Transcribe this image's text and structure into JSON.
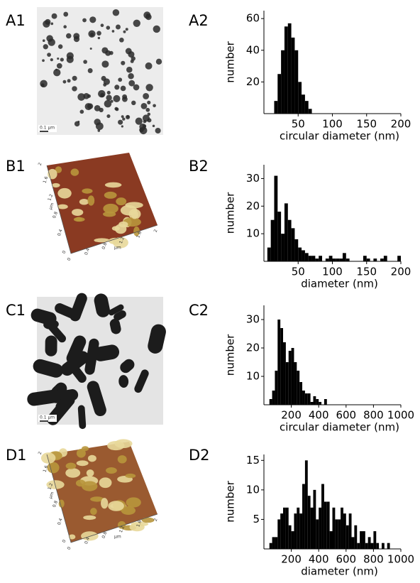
{
  "image_panels": [
    {
      "label": "A1",
      "scale_bar": "0.1 µm"
    },
    {
      "label": "B1",
      "axis_ticks": [
        "0",
        "0.4",
        "0.8",
        "1.2",
        "1.6",
        "2"
      ],
      "axis_unit": "µm"
    },
    {
      "label": "C1",
      "scale_bar": "0.1 µm"
    },
    {
      "label": "D1",
      "axis_ticks": [
        "0",
        "0.4",
        "0.8",
        "1.2",
        "1.6",
        "2"
      ],
      "axis_unit": "µm"
    }
  ],
  "chart_data": [
    {
      "type": "histogram",
      "panel_label": "A2",
      "xlabel": "circular diameter (nm)",
      "ylabel": "number",
      "color": "#000000",
      "bins": [
        15,
        20,
        25,
        30,
        35,
        40,
        45,
        50,
        55,
        60,
        65,
        70
      ],
      "counts": [
        8,
        25,
        40,
        55,
        57,
        48,
        40,
        20,
        12,
        8,
        3
      ],
      "xlim": [
        0,
        200
      ],
      "ylim": [
        0,
        65
      ],
      "xticks": [
        50,
        100,
        150,
        200
      ],
      "yticks": [
        20,
        40,
        60
      ]
    },
    {
      "type": "histogram",
      "panel_label": "B2",
      "xlabel": "diameter (nm)",
      "ylabel": "number",
      "color": "#000000",
      "bins": [
        5,
        10,
        15,
        20,
        25,
        30,
        35,
        40,
        45,
        50,
        55,
        60,
        65,
        70,
        75,
        80,
        85,
        90,
        95,
        100,
        105,
        110,
        115,
        120,
        125,
        130,
        135,
        140,
        145,
        150,
        155,
        160,
        165,
        170,
        175,
        180,
        185,
        190,
        195,
        200
      ],
      "counts": [
        5,
        15,
        31,
        18,
        10,
        21,
        15,
        12,
        8,
        5,
        4,
        3,
        2,
        2,
        1,
        2,
        0,
        1,
        2,
        1,
        1,
        1,
        3,
        1,
        0,
        0,
        0,
        0,
        2,
        1,
        0,
        1,
        0,
        1,
        2,
        0,
        0,
        0,
        2
      ],
      "xlim": [
        0,
        200
      ],
      "ylim": [
        0,
        35
      ],
      "xticks": [
        50,
        100,
        150,
        200
      ],
      "yticks": [
        10,
        20,
        30
      ]
    },
    {
      "type": "histogram",
      "panel_label": "C2",
      "xlabel": "circular diameter (nm)",
      "ylabel": "number",
      "color": "#000000",
      "bins": [
        40,
        60,
        80,
        100,
        120,
        140,
        160,
        180,
        200,
        220,
        240,
        260,
        280,
        300,
        320,
        340,
        360,
        380,
        400,
        420,
        440,
        460
      ],
      "counts": [
        2,
        5,
        12,
        30,
        27,
        22,
        15,
        19,
        20,
        15,
        12,
        8,
        5,
        4,
        4,
        1,
        3,
        2,
        1,
        0,
        2
      ],
      "xlim": [
        0,
        1000
      ],
      "ylim": [
        0,
        35
      ],
      "xticks": [
        200,
        400,
        600,
        800,
        1000
      ],
      "yticks": [
        10,
        20,
        30
      ]
    },
    {
      "type": "histogram",
      "panel_label": "D2",
      "xlabel": "diameter (nm)",
      "ylabel": "number",
      "color": "#000000",
      "bins": [
        40,
        60,
        80,
        100,
        120,
        140,
        160,
        180,
        200,
        220,
        240,
        260,
        280,
        300,
        320,
        340,
        360,
        380,
        400,
        420,
        440,
        460,
        480,
        500,
        520,
        540,
        560,
        580,
        600,
        620,
        640,
        660,
        680,
        700,
        720,
        740,
        760,
        780,
        800,
        820,
        840,
        860,
        880,
        900,
        920
      ],
      "counts": [
        1,
        2,
        2,
        5,
        6,
        7,
        7,
        4,
        3,
        6,
        7,
        6,
        11,
        15,
        9,
        7,
        10,
        5,
        7,
        11,
        8,
        8,
        3,
        7,
        5,
        5,
        7,
        6,
        4,
        6,
        2,
        4,
        1,
        3,
        3,
        1,
        2,
        1,
        3,
        1,
        0,
        1,
        0,
        1
      ],
      "xlim": [
        0,
        1000
      ],
      "ylim": [
        0,
        16
      ],
      "xticks": [
        200,
        400,
        600,
        800,
        1000
      ],
      "yticks": [
        5,
        10,
        15
      ]
    }
  ]
}
